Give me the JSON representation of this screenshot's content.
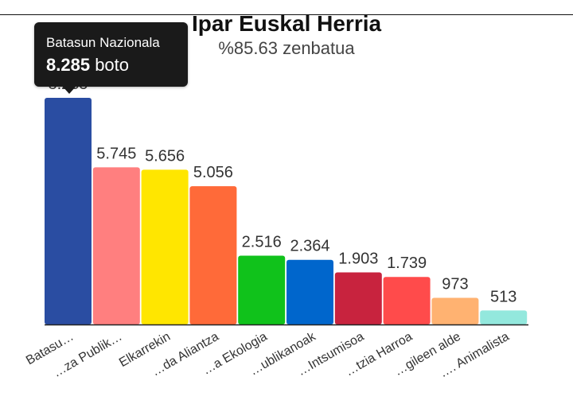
{
  "chart_data": {
    "type": "bar",
    "title": "Ipar Euskal Herria",
    "subtitle": "%85.63 zenbatua",
    "categories": [
      "Batasun Nazionala",
      "Hautagaitza Publikoak",
      "Elkarrekin",
      "Eskuinaren Aliantza",
      "Alderdi Ekologia",
      "Errepublikanoak",
      "Frantzia Intsumisoa",
      "Frantzia Harroa",
      "Langileen alde",
      "Alderdi Animalista"
    ],
    "tick_labels": [
      "Batasu…",
      "…za Publik…",
      "Elkarrekin",
      "…da Aliantza",
      "…a Ekologia",
      "…ublikanoak",
      "…Intsumisoa",
      "…tzia Harroa",
      "…gileen alde",
      "…. Animalista"
    ],
    "values": [
      8285,
      5745,
      5656,
      5056,
      2516,
      2364,
      1903,
      1739,
      973,
      513
    ],
    "value_labels": [
      "8.285",
      "5.745",
      "5.656",
      "5.056",
      "2.516",
      "2.364",
      "1.903",
      "1.739",
      "973",
      "513"
    ],
    "colors": [
      "#2a4da2",
      "#ff7f7f",
      "#ffe600",
      "#ff6a39",
      "#10c21b",
      "#0066cc",
      "#c8233e",
      "#ff4b4b",
      "#ffb271",
      "#93e8dd"
    ],
    "ylim": [
      0,
      8285
    ],
    "grid": false,
    "legend": "none"
  },
  "tooltip": {
    "title": "Batasun Nazionala",
    "value": "8.285",
    "unit": "boto"
  }
}
